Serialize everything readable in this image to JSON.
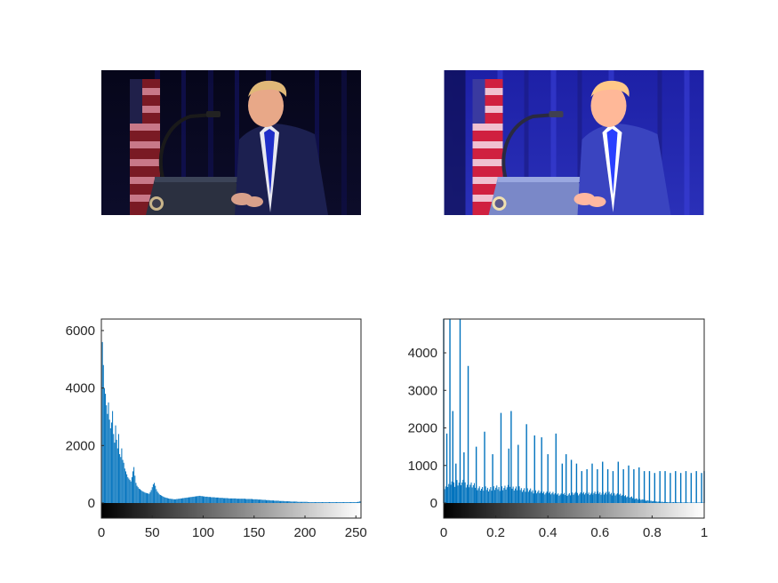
{
  "figure": {
    "images": [
      {
        "name": "original-image",
        "subject": "speaker-at-podium-photo"
      },
      {
        "name": "enhanced-image",
        "subject": "speaker-at-podium-photo-equalized"
      }
    ]
  },
  "chart_data": [
    {
      "type": "bar",
      "title": "",
      "xlabel": "",
      "ylabel": "",
      "xlim": [
        0,
        255
      ],
      "ylim": [
        -500,
        6400
      ],
      "x_ticks": [
        "0",
        "50",
        "100",
        "150",
        "200",
        "250"
      ],
      "y_ticks": [
        "0",
        "2000",
        "4000",
        "6000"
      ],
      "colorbar": {
        "from": "#000000",
        "to": "#ffffff",
        "range": [
          0,
          255
        ]
      },
      "bar_color": "#0072BD",
      "grid": false,
      "legend": "none",
      "series": [
        {
          "x_start": 0,
          "x_step": 1,
          "values": [
            6400,
            5600,
            4800,
            4000,
            3800,
            3400,
            3100,
            3500,
            2900,
            2600,
            2800,
            3200,
            2400,
            2100,
            2700,
            2200,
            1900,
            2400,
            1700,
            1600,
            1900,
            1500,
            1400,
            1200,
            1100,
            1000,
            900,
            850,
            800,
            750,
            900,
            1100,
            1250,
            950,
            700,
            600,
            550,
            500,
            480,
            450,
            420,
            400,
            380,
            360,
            350,
            340,
            330,
            320,
            380,
            450,
            550,
            650,
            700,
            600,
            480,
            400,
            350,
            300,
            280,
            260,
            240,
            220,
            200,
            190,
            180,
            170,
            160,
            150,
            150,
            140,
            140,
            130,
            130,
            130,
            140,
            140,
            150,
            150,
            160,
            160,
            170,
            170,
            180,
            180,
            190,
            190,
            200,
            200,
            210,
            210,
            220,
            220,
            230,
            230,
            240,
            240,
            250,
            250,
            240,
            240,
            230,
            230,
            220,
            220,
            220,
            210,
            210,
            210,
            200,
            200,
            200,
            200,
            190,
            190,
            190,
            190,
            180,
            180,
            180,
            180,
            170,
            170,
            170,
            170,
            170,
            160,
            160,
            160,
            160,
            160,
            160,
            160,
            160,
            150,
            150,
            150,
            150,
            150,
            150,
            150,
            150,
            150,
            140,
            140,
            140,
            140,
            140,
            140,
            140,
            130,
            130,
            130,
            130,
            130,
            120,
            120,
            120,
            120,
            110,
            110,
            110,
            110,
            100,
            100,
            100,
            100,
            90,
            90,
            90,
            90,
            80,
            80,
            80,
            80,
            80,
            70,
            70,
            70,
            70,
            70,
            60,
            60,
            60,
            60,
            60,
            60,
            50,
            50,
            50,
            50,
            50,
            50,
            50,
            40,
            40,
            40,
            40,
            40,
            40,
            40,
            40,
            40,
            40,
            30,
            30,
            30,
            30,
            30,
            30,
            30,
            30,
            30,
            30,
            30,
            30,
            30,
            30,
            30,
            30,
            30,
            30,
            30,
            30,
            30,
            30,
            30,
            30,
            30,
            30,
            30,
            30,
            30,
            30,
            30,
            30,
            30,
            30,
            30,
            30,
            30,
            30,
            30,
            30,
            30,
            30,
            30,
            30,
            30,
            30,
            30,
            30,
            30,
            40,
            40,
            60,
            300
          ]
        }
      ]
    },
    {
      "type": "bar",
      "title": "",
      "xlabel": "",
      "ylabel": "",
      "xlim": [
        0,
        1
      ],
      "ylim": [
        -500,
        4900
      ],
      "x_ticks": [
        "0",
        "0.2",
        "0.4",
        "0.6",
        "0.8",
        "1"
      ],
      "y_ticks": [
        "0",
        "1000",
        "2000",
        "3000",
        "4000"
      ],
      "colorbar": {
        "from": "#000000",
        "to": "#ffffff",
        "range": [
          0,
          1
        ]
      },
      "bar_color": "#0072BD",
      "grid": false,
      "legend": "none",
      "series": [
        {
          "name": "",
          "spikes": [
            {
              "x": 0.0,
              "y": 4900
            },
            {
              "x": 0.012,
              "y": 1850
            },
            {
              "x": 0.024,
              "y": 4900
            },
            {
              "x": 0.035,
              "y": 2450
            },
            {
              "x": 0.047,
              "y": 1050
            },
            {
              "x": 0.063,
              "y": 4900
            },
            {
              "x": 0.078,
              "y": 1350
            },
            {
              "x": 0.094,
              "y": 3650
            },
            {
              "x": 0.125,
              "y": 1500
            },
            {
              "x": 0.157,
              "y": 1900
            },
            {
              "x": 0.188,
              "y": 1300
            },
            {
              "x": 0.22,
              "y": 2400
            },
            {
              "x": 0.25,
              "y": 1450
            },
            {
              "x": 0.259,
              "y": 2450
            },
            {
              "x": 0.286,
              "y": 1550
            },
            {
              "x": 0.318,
              "y": 2100
            },
            {
              "x": 0.349,
              "y": 1800
            },
            {
              "x": 0.376,
              "y": 1750
            },
            {
              "x": 0.4,
              "y": 1300
            },
            {
              "x": 0.431,
              "y": 1850
            },
            {
              "x": 0.455,
              "y": 1050
            },
            {
              "x": 0.47,
              "y": 1300
            },
            {
              "x": 0.49,
              "y": 1150
            },
            {
              "x": 0.51,
              "y": 1050
            },
            {
              "x": 0.53,
              "y": 850
            },
            {
              "x": 0.55,
              "y": 900
            },
            {
              "x": 0.57,
              "y": 1050
            },
            {
              "x": 0.59,
              "y": 900
            },
            {
              "x": 0.61,
              "y": 1100
            },
            {
              "x": 0.63,
              "y": 900
            },
            {
              "x": 0.65,
              "y": 850
            },
            {
              "x": 0.67,
              "y": 1100
            },
            {
              "x": 0.69,
              "y": 900
            },
            {
              "x": 0.71,
              "y": 1000
            },
            {
              "x": 0.73,
              "y": 900
            },
            {
              "x": 0.75,
              "y": 950
            },
            {
              "x": 0.77,
              "y": 850
            },
            {
              "x": 0.79,
              "y": 850
            },
            {
              "x": 0.81,
              "y": 800
            },
            {
              "x": 0.83,
              "y": 850
            },
            {
              "x": 0.85,
              "y": 850
            },
            {
              "x": 0.87,
              "y": 800
            },
            {
              "x": 0.89,
              "y": 850
            },
            {
              "x": 0.91,
              "y": 800
            },
            {
              "x": 0.93,
              "y": 850
            },
            {
              "x": 0.95,
              "y": 800
            },
            {
              "x": 0.97,
              "y": 850
            },
            {
              "x": 0.99,
              "y": 800
            },
            {
              "x": 1.0,
              "y": 850
            }
          ],
          "background": [
            {
              "x": 0.0,
              "y": 300
            },
            {
              "x": 0.05,
              "y": 450
            },
            {
              "x": 0.1,
              "y": 400
            },
            {
              "x": 0.15,
              "y": 300
            },
            {
              "x": 0.2,
              "y": 320
            },
            {
              "x": 0.25,
              "y": 330
            },
            {
              "x": 0.3,
              "y": 300
            },
            {
              "x": 0.35,
              "y": 250
            },
            {
              "x": 0.4,
              "y": 220
            },
            {
              "x": 0.45,
              "y": 180
            },
            {
              "x": 0.5,
              "y": 200
            },
            {
              "x": 0.55,
              "y": 210
            },
            {
              "x": 0.6,
              "y": 220
            },
            {
              "x": 0.65,
              "y": 200
            },
            {
              "x": 0.7,
              "y": 150
            },
            {
              "x": 0.75,
              "y": 80
            },
            {
              "x": 0.8,
              "y": 40
            },
            {
              "x": 0.85,
              "y": 20
            },
            {
              "x": 0.9,
              "y": 15
            },
            {
              "x": 0.95,
              "y": 10
            },
            {
              "x": 1.0,
              "y": 10
            }
          ]
        }
      ]
    }
  ]
}
